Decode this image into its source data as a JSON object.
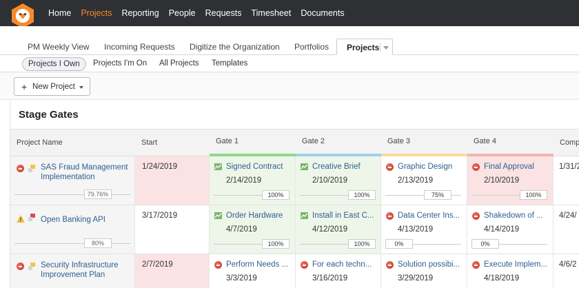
{
  "topnav": {
    "items": [
      "Home",
      "Projects",
      "Reporting",
      "People",
      "Requests",
      "Timesheet",
      "Documents"
    ],
    "active": "Projects"
  },
  "tabs": {
    "items": [
      "PM Weekly View",
      "Incoming Requests",
      "Digitize the Organization",
      "Portfolios"
    ],
    "active": "Projects"
  },
  "subtabs": {
    "items": [
      "Projects I Own",
      "Projects I'm On",
      "All Projects",
      "Templates"
    ]
  },
  "toolbar": {
    "new_project": "New Project"
  },
  "section": {
    "title": "Stage Gates"
  },
  "columns": {
    "name": "Project Name",
    "start": "Start",
    "gates": [
      {
        "label": "Gate 1",
        "color": "#8fd98a"
      },
      {
        "label": "Gate 2",
        "color": "#9dd0ea"
      },
      {
        "label": "Gate 3",
        "color": "#f6dd9c"
      },
      {
        "label": "Gate 4",
        "color": "#f3b3b0"
      }
    ],
    "last": "Comp"
  },
  "rows": [
    {
      "name": "SAS Fraud Management Implementation",
      "progress": "79.76%",
      "start": "1/24/2019",
      "gates": [
        {
          "name": "Signed Contract",
          "date": "2/14/2019",
          "pct": "100%",
          "status": "complete"
        },
        {
          "name": "Creative Brief",
          "date": "2/10/2019",
          "pct": "100%",
          "status": "complete"
        },
        {
          "name": "Graphic Design",
          "date": "2/13/2019",
          "pct": "75%",
          "status": "late"
        },
        {
          "name": "Final Approval",
          "date": "2/10/2019",
          "pct": "100%",
          "status": "late"
        }
      ],
      "last": "1/31/2"
    },
    {
      "name": "Open Banking API",
      "progress": "80%",
      "start": "3/17/2019",
      "gates": [
        {
          "name": "Order Hardware",
          "date": "4/7/2019",
          "pct": "100%",
          "status": "complete"
        },
        {
          "name": "Install in East C...",
          "date": "4/12/2019",
          "pct": "100%",
          "status": "complete"
        },
        {
          "name": "Data Center Ins...",
          "date": "4/13/2019",
          "pct": "0%",
          "status": "late"
        },
        {
          "name": "Shakedown of ...",
          "date": "4/14/2019",
          "pct": "0%",
          "status": "late"
        }
      ],
      "last": "4/24/"
    },
    {
      "name": "Security Infrastructure Improvement Plan",
      "start": "2/7/2019",
      "gates": [
        {
          "name": "Perform Needs ...",
          "date": "3/3/2019",
          "status": "late"
        },
        {
          "name": "For each techn...",
          "date": "3/16/2019",
          "status": "late"
        },
        {
          "name": "Solution possibi...",
          "date": "3/29/2019",
          "status": "late"
        },
        {
          "name": "Execute Implem...",
          "date": "4/18/2019",
          "status": "late"
        }
      ],
      "last": "4/6/2"
    }
  ]
}
